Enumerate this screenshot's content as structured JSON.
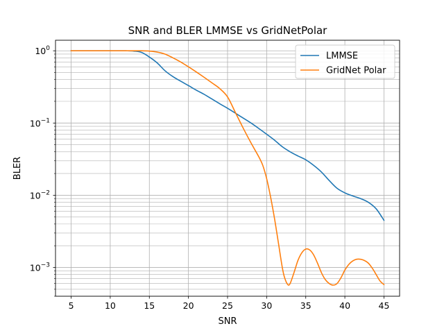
{
  "chart_data": {
    "type": "line",
    "title": "SNR and BLER LMMSE vs GridNetPolar",
    "xlabel": "SNR",
    "ylabel": "BLER",
    "xscale": "linear",
    "yscale": "log",
    "xlim": [
      3,
      47
    ],
    "ylim": [
      0.0004,
      1.4
    ],
    "xticks": [
      5,
      10,
      15,
      20,
      25,
      30,
      35,
      40,
      45
    ],
    "yticks": [
      {
        "value": 1,
        "base": "10",
        "exp": "0"
      },
      {
        "value": 0.1,
        "base": "10",
        "exp": "−1"
      },
      {
        "value": 0.01,
        "base": "10",
        "exp": "−2"
      },
      {
        "value": 0.001,
        "base": "10",
        "exp": "−3"
      }
    ],
    "grid": "major and minor",
    "legend_position": "top-right",
    "series": [
      {
        "name": "LMMSE",
        "color": "#1f77b4",
        "x": [
          5,
          6,
          7,
          8,
          9,
          10,
          11,
          12,
          13,
          14,
          15,
          16,
          17,
          18,
          19,
          20,
          21,
          22,
          23,
          24,
          25,
          26,
          27,
          28,
          29,
          30,
          31,
          32,
          33,
          34,
          35,
          36,
          37,
          38,
          39,
          40,
          41,
          42,
          43,
          44,
          45
        ],
        "y": [
          1.0,
          1.0,
          1.0,
          1.0,
          1.0,
          1.0,
          1.0,
          1.0,
          0.99,
          0.95,
          0.82,
          0.68,
          0.53,
          0.44,
          0.38,
          0.33,
          0.285,
          0.25,
          0.215,
          0.185,
          0.16,
          0.137,
          0.117,
          0.1,
          0.084,
          0.07,
          0.058,
          0.047,
          0.04,
          0.035,
          0.031,
          0.026,
          0.021,
          0.016,
          0.0125,
          0.0108,
          0.0098,
          0.009,
          0.008,
          0.0065,
          0.0045
        ]
      },
      {
        "name": "GridNet Polar",
        "color": "#ff7f0e",
        "x": [
          5,
          10,
          12,
          14,
          15,
          16,
          17,
          18,
          19,
          20,
          21,
          22,
          23,
          24,
          25,
          26,
          27,
          28,
          29,
          29.5,
          30,
          30.5,
          31,
          31.5,
          32,
          32.3,
          32.7,
          33,
          33.5,
          34,
          34.5,
          35,
          35.5,
          36,
          36.5,
          37,
          37.5,
          38,
          38.5,
          39,
          39.5,
          40,
          40.5,
          41,
          41.5,
          42,
          42.5,
          43,
          43.5,
          44,
          44.5,
          45
        ],
        "y": [
          1.0,
          1.0,
          1.0,
          1.0,
          0.99,
          0.96,
          0.9,
          0.8,
          0.7,
          0.6,
          0.51,
          0.43,
          0.36,
          0.3,
          0.23,
          0.14,
          0.085,
          0.053,
          0.034,
          0.026,
          0.017,
          0.0095,
          0.0048,
          0.0022,
          0.001,
          0.00072,
          0.00058,
          0.0006,
          0.00085,
          0.00125,
          0.0016,
          0.0018,
          0.00175,
          0.0015,
          0.00115,
          0.00085,
          0.00068,
          0.0006,
          0.00057,
          0.0006,
          0.00072,
          0.00092,
          0.0011,
          0.00123,
          0.0013,
          0.0013,
          0.00125,
          0.00115,
          0.00098,
          0.0008,
          0.00065,
          0.00058
        ]
      }
    ]
  }
}
